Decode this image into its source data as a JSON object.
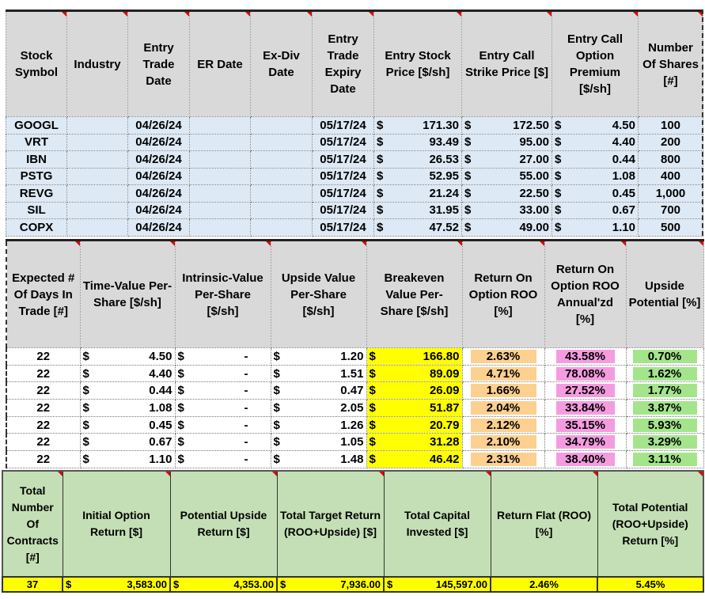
{
  "top_table": {
    "headers": [
      "Stock Symbol",
      "Industry",
      "Entry Trade Date",
      "ER Date",
      "Ex-Div Date",
      "Entry Trade Expiry Date",
      "Entry Stock Price [$/sh]",
      "Entry Call Strike Price [$]",
      "Entry Call Option Premium [$/sh]",
      "Number Of Shares [#]"
    ],
    "rows": [
      [
        "GOOGL",
        "",
        "04/26/24",
        "",
        "",
        "05/17/24",
        "171.30",
        "172.50",
        "4.50",
        "100"
      ],
      [
        "VRT",
        "",
        "04/26/24",
        "",
        "",
        "05/17/24",
        "93.49",
        "95.00",
        "4.40",
        "200"
      ],
      [
        "IBN",
        "",
        "04/26/24",
        "",
        "",
        "05/17/24",
        "26.53",
        "27.00",
        "0.44",
        "800"
      ],
      [
        "PSTG",
        "",
        "04/26/24",
        "",
        "",
        "05/17/24",
        "52.95",
        "55.00",
        "1.08",
        "400"
      ],
      [
        "REVG",
        "",
        "04/26/24",
        "",
        "",
        "05/17/24",
        "21.24",
        "22.50",
        "0.45",
        "1,000"
      ],
      [
        "SIL",
        "",
        "04/26/24",
        "",
        "",
        "05/17/24",
        "31.95",
        "33.00",
        "0.67",
        "700"
      ],
      [
        "COPX",
        "",
        "04/26/24",
        "",
        "",
        "05/17/24",
        "47.52",
        "49.00",
        "1.10",
        "500"
      ]
    ]
  },
  "middle_table": {
    "headers": [
      "Expected # Of Days In Trade [#]",
      "Time-Value Per-Share [$/sh]",
      "Intrinsic-Value Per-Share [$/sh]",
      "Upside Value Per-Share [$/sh]",
      "Breakeven Value Per-Share [$/sh]",
      "Return On Option ROO [%]",
      "Return On Option ROO Annual'zd [%]",
      "Upside Potential [%]"
    ],
    "rows": [
      [
        "22",
        "4.50",
        "-",
        "1.20",
        "166.80",
        "2.63%",
        "43.58%",
        "0.70%"
      ],
      [
        "22",
        "4.40",
        "-",
        "1.51",
        "89.09",
        "4.71%",
        "78.08%",
        "1.62%"
      ],
      [
        "22",
        "0.44",
        "-",
        "0.47",
        "26.09",
        "1.66%",
        "27.52%",
        "1.77%"
      ],
      [
        "22",
        "1.08",
        "-",
        "2.05",
        "51.87",
        "2.04%",
        "33.84%",
        "3.87%"
      ],
      [
        "22",
        "0.45",
        "-",
        "1.26",
        "20.79",
        "2.12%",
        "35.15%",
        "5.93%"
      ],
      [
        "22",
        "0.67",
        "-",
        "1.05",
        "31.28",
        "2.10%",
        "34.79%",
        "3.29%"
      ],
      [
        "22",
        "1.10",
        "-",
        "1.48",
        "46.42",
        "2.31%",
        "38.40%",
        "3.11%"
      ]
    ],
    "colors": {
      "breakeven": "#ffff00",
      "roo": "#fcd08f",
      "roo_annualized": "#f59ce0",
      "upside": "#a4e58c"
    }
  },
  "summary_table": {
    "headers": [
      "Total Number Of Contracts [#]",
      "Initial Option Return [$]",
      "Potential Upside Return [$]",
      "Total Target Return (ROO+Upside) [$]",
      "Total Capital Invested [$]",
      "Return Flat (ROO) [%]",
      "Total Potential (ROO+Upside) Return [%]"
    ],
    "values": [
      "37",
      "3,583.00",
      "4,353.00",
      "7,936.00",
      "145,597.00",
      "2.46%",
      "5.45%"
    ]
  },
  "currency_symbol": "$"
}
